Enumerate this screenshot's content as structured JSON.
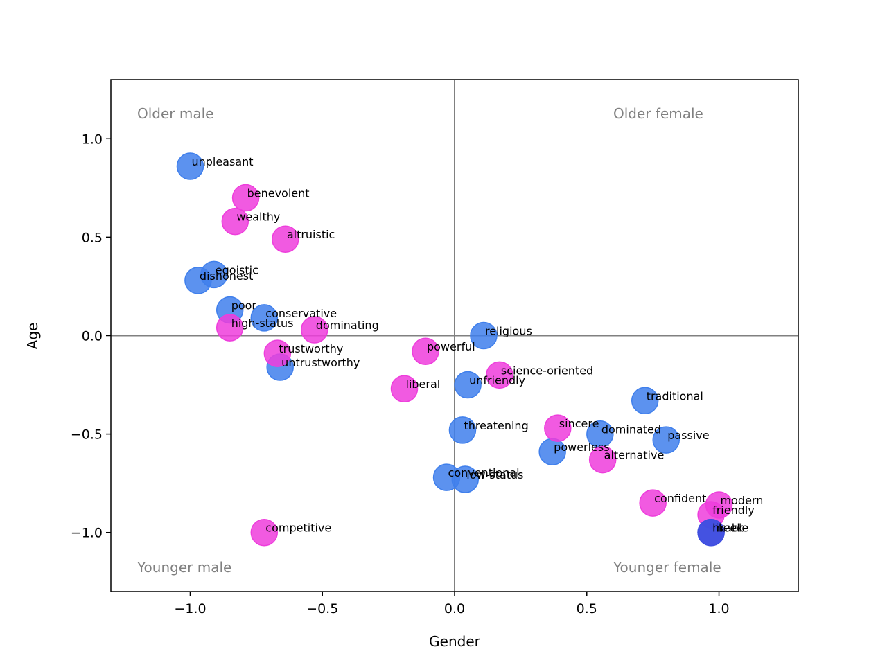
{
  "chart_data": {
    "type": "scatter",
    "title": "",
    "xlabel": "Gender",
    "ylabel": "Age",
    "xlim": [
      -1.3,
      1.3
    ],
    "ylim": [
      -1.3,
      1.3
    ],
    "xticks": [
      -1.0,
      -0.5,
      0.0,
      0.5,
      1.0
    ],
    "yticks": [
      -1.0,
      -0.5,
      0.0,
      0.5,
      1.0
    ],
    "xtick_labels": [
      "−1.0",
      "−0.5",
      "0.0",
      "0.5",
      "1.0"
    ],
    "ytick_labels": [
      "−1.0",
      "−0.5",
      "0.0",
      "0.5",
      "1.0"
    ],
    "reference_lines": {
      "x": 0,
      "y": 0,
      "color": "#808080"
    },
    "quadrant_labels": {
      "top_left": "Older male",
      "top_right": "Older female",
      "bottom_left": "Younger male",
      "bottom_right": "Younger female"
    },
    "colors": {
      "blue": "#3f7fec",
      "pink": "#ee3ddc",
      "dark_blue": "#3f4fe0"
    },
    "series": [
      {
        "name": "blue",
        "color": "#3f7fec",
        "points": [
          {
            "label": "unpleasant",
            "x": -1.0,
            "y": 0.86
          },
          {
            "label": "egoistic",
            "x": -0.91,
            "y": 0.31
          },
          {
            "label": "dishonest",
            "x": -0.97,
            "y": 0.28
          },
          {
            "label": "poor",
            "x": -0.85,
            "y": 0.13
          },
          {
            "label": "conservative",
            "x": -0.72,
            "y": 0.09
          },
          {
            "label": "untrustworthy",
            "x": -0.66,
            "y": -0.16
          },
          {
            "label": "religious",
            "x": 0.11,
            "y": 0.0
          },
          {
            "label": "unfriendly",
            "x": 0.05,
            "y": -0.25
          },
          {
            "label": "traditional",
            "x": 0.72,
            "y": -0.33
          },
          {
            "label": "threatening",
            "x": 0.03,
            "y": -0.48
          },
          {
            "label": "dominated",
            "x": 0.55,
            "y": -0.5
          },
          {
            "label": "passive",
            "x": 0.8,
            "y": -0.53
          },
          {
            "label": "powerless",
            "x": 0.37,
            "y": -0.59
          },
          {
            "label": "conventional",
            "x": -0.03,
            "y": -0.72
          },
          {
            "label": "low-status",
            "x": 0.04,
            "y": -0.73
          }
        ]
      },
      {
        "name": "pink",
        "color": "#ee3ddc",
        "points": [
          {
            "label": "benevolent",
            "x": -0.79,
            "y": 0.7
          },
          {
            "label": "wealthy",
            "x": -0.83,
            "y": 0.58
          },
          {
            "label": "altruistic",
            "x": -0.64,
            "y": 0.49
          },
          {
            "label": "high-status",
            "x": -0.85,
            "y": 0.04
          },
          {
            "label": "dominating",
            "x": -0.53,
            "y": 0.03
          },
          {
            "label": "trustworthy",
            "x": -0.67,
            "y": -0.09
          },
          {
            "label": "powerful",
            "x": -0.11,
            "y": -0.08
          },
          {
            "label": "science-oriented",
            "x": 0.17,
            "y": -0.2
          },
          {
            "label": "liberal",
            "x": -0.19,
            "y": -0.27
          },
          {
            "label": "sincere",
            "x": 0.39,
            "y": -0.47
          },
          {
            "label": "alternative",
            "x": 0.56,
            "y": -0.63
          },
          {
            "label": "confident",
            "x": 0.75,
            "y": -0.85
          },
          {
            "label": "modern",
            "x": 1.0,
            "y": -0.86
          },
          {
            "label": "friendly",
            "x": 0.97,
            "y": -0.91
          },
          {
            "label": "competitive",
            "x": -0.72,
            "y": -1.0
          }
        ]
      },
      {
        "name": "dark_blue",
        "color": "#3f4fe0",
        "points": [
          {
            "label": "likable",
            "x": 0.97,
            "y": -1.0
          },
          {
            "label": "meek",
            "x": 0.97,
            "y": -1.0
          }
        ]
      }
    ]
  }
}
